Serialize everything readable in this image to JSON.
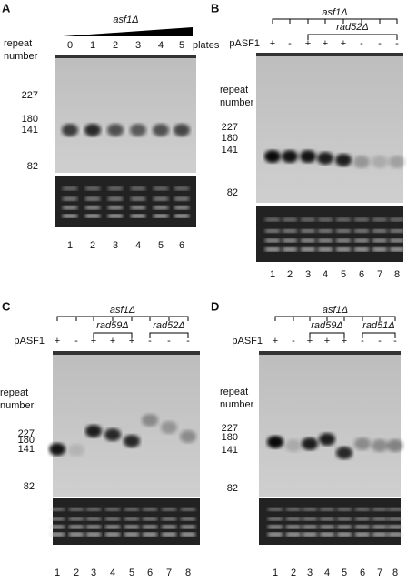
{
  "panels": [
    {
      "letter": "A",
      "strain": "asf1Δ",
      "dose": [
        "0",
        "1",
        "2",
        "3",
        "4",
        "5"
      ],
      "dose_unit": "plates",
      "marker_title": [
        "repeat",
        "number"
      ],
      "markers": [
        "227",
        "180",
        "141",
        "82"
      ],
      "lanes": [
        "1",
        "2",
        "3",
        "4",
        "5",
        "6"
      ]
    },
    {
      "letter": "B",
      "strain": "asf1Δ",
      "sub": [
        "rad52Δ"
      ],
      "plasmid_label": "pASF1",
      "plasmid": [
        "+",
        "-",
        "+",
        "+",
        "+",
        "-",
        "-",
        "-"
      ],
      "marker_title": [
        "repeat",
        "number"
      ],
      "markers": [
        "227",
        "180",
        "141",
        "82"
      ],
      "lanes": [
        "1",
        "2",
        "3",
        "4",
        "5",
        "6",
        "7",
        "8"
      ]
    },
    {
      "letter": "C",
      "strain": "asf1Δ",
      "sub": [
        "rad59Δ",
        "rad52Δ"
      ],
      "plasmid_label": "pASF1",
      "plasmid": [
        "+",
        "-",
        "+",
        "+",
        "+",
        "-",
        "-",
        "-"
      ],
      "marker_title": [
        "repeat",
        "number"
      ],
      "markers": [
        "227",
        "180",
        "141",
        "82"
      ],
      "lanes": [
        "1",
        "2",
        "3",
        "4",
        "5",
        "6",
        "7",
        "8"
      ]
    },
    {
      "letter": "D",
      "strain": "asf1Δ",
      "sub": [
        "rad59Δ",
        "rad51Δ"
      ],
      "plasmid_label": "pASF1",
      "plasmid": [
        "+",
        "-",
        "+",
        "+",
        "+",
        "-",
        "-",
        "-"
      ],
      "marker_title": [
        "repeat",
        "number"
      ],
      "markers": [
        "227",
        "180",
        "141",
        "82"
      ],
      "lanes": [
        "1",
        "2",
        "3",
        "4",
        "5",
        "6",
        "7",
        "8"
      ]
    }
  ]
}
